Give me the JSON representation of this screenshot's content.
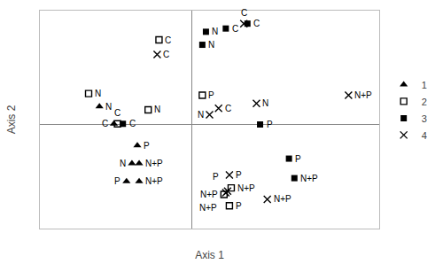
{
  "chart_data": {
    "type": "scatter",
    "xlabel": "Axis 1",
    "ylabel": "Axis 2",
    "xlim": [
      -4.2,
      5.2
    ],
    "ylim": [
      -3.2,
      3.5
    ],
    "tick_labels": false,
    "grid": false,
    "legend": "right",
    "color": "#000000",
    "series": [
      {
        "name": "1",
        "marker": "triangle-up",
        "x": [
          -2.55,
          -2.15,
          -1.5,
          -1.65,
          -1.45,
          -1.8,
          -1.45
        ],
        "values": [
          0.55,
          0.02,
          -0.65,
          -1.2,
          -1.2,
          -1.75,
          -1.75
        ],
        "labels": [
          "N",
          "C",
          "P",
          "N",
          "N+P",
          "P",
          "N+P"
        ]
      },
      {
        "name": "2",
        "marker": "square-open",
        "x": [
          -2.05,
          -2.85,
          -1.2,
          -0.9,
          0.3,
          1.1,
          0.9,
          1.05
        ],
        "values": [
          0.02,
          0.95,
          0.45,
          2.6,
          0.9,
          -1.95,
          -2.15,
          -2.5
        ],
        "labels": [
          "C",
          "N",
          "N",
          "C",
          "P",
          "N+P",
          "N+P",
          "P"
        ]
      },
      {
        "name": "3",
        "marker": "square",
        "x": [
          -1.9,
          0.4,
          0.3,
          0.95,
          1.55,
          1.9,
          2.7,
          2.85
        ],
        "values": [
          0.02,
          2.85,
          2.45,
          2.95,
          3.1,
          0.0,
          -1.05,
          -1.65
        ],
        "labels": [
          "C",
          "N",
          "N",
          "C",
          "C",
          "P",
          "P",
          "N+P"
        ]
      },
      {
        "name": "4",
        "marker": "x-thin-open",
        "x": [
          -0.95,
          1.45,
          0.75,
          0.5,
          1.8,
          4.35,
          1.05,
          1.0,
          0.95,
          2.1
        ],
        "values": [
          2.15,
          3.1,
          0.5,
          0.3,
          0.65,
          0.9,
          -1.55,
          -2.05,
          -2.1,
          -2.3
        ],
        "labels": [
          "C",
          "C",
          "C",
          "N",
          "N",
          "N+P",
          "P",
          "P",
          "N+P",
          "N+P"
        ]
      }
    ]
  }
}
